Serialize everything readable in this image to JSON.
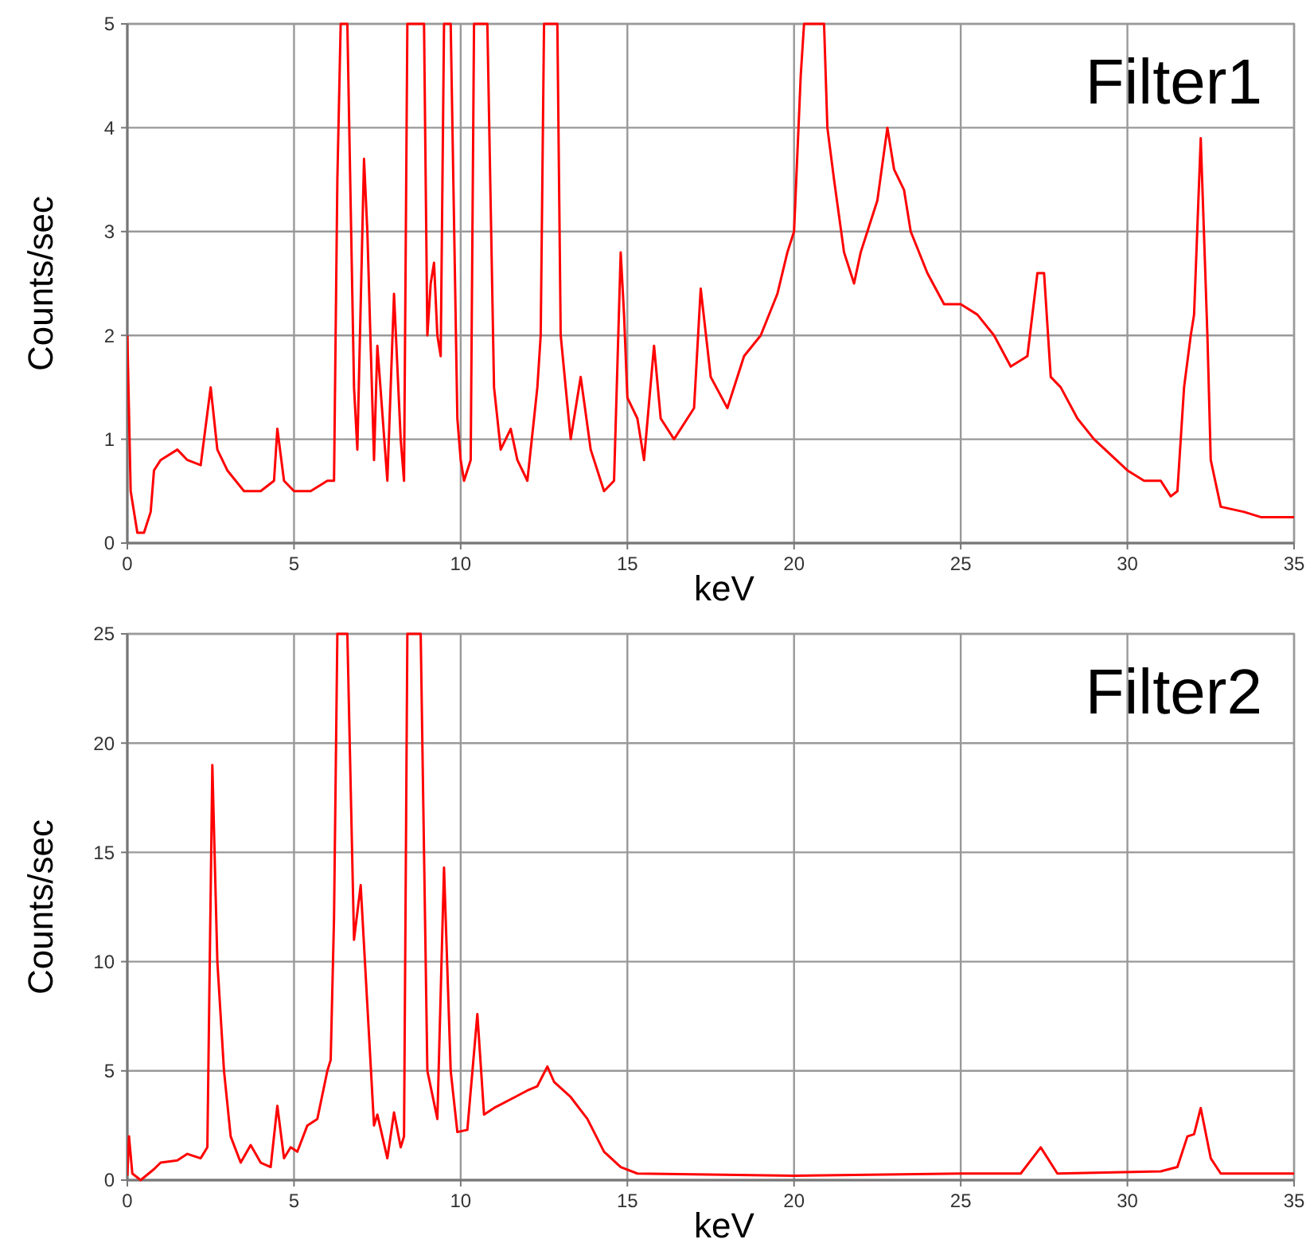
{
  "chart_data": [
    {
      "type": "line",
      "title": "Filter1",
      "xlabel": "keV",
      "ylabel": "Counts/sec",
      "xlim": [
        0,
        35
      ],
      "ylim": [
        0,
        5
      ],
      "xticks": [
        0,
        5,
        10,
        15,
        20,
        25,
        30,
        35
      ],
      "yticks": [
        0,
        1,
        2,
        3,
        4,
        5
      ],
      "grid": true,
      "series": [
        {
          "color": "#ff0000",
          "x": [
            0,
            0.1,
            0.3,
            0.5,
            0.7,
            0.8,
            1.0,
            1.5,
            1.8,
            2.2,
            2.5,
            2.7,
            3.0,
            3.5,
            4.0,
            4.4,
            4.5,
            4.7,
            5.0,
            5.5,
            6.0,
            6.2,
            6.3,
            6.4,
            6.6,
            6.8,
            6.9,
            7.1,
            7.2,
            7.4,
            7.5,
            7.8,
            8.0,
            8.2,
            8.3,
            8.4,
            8.6,
            8.9,
            9.0,
            9.1,
            9.2,
            9.3,
            9.4,
            9.5,
            9.7,
            9.9,
            10.0,
            10.1,
            10.3,
            10.4,
            10.8,
            11.0,
            11.2,
            11.5,
            11.7,
            12.0,
            12.3,
            12.4,
            12.5,
            12.9,
            13.0,
            13.3,
            13.6,
            13.9,
            14.3,
            14.6,
            14.8,
            14.9,
            15.0,
            15.3,
            15.5,
            15.8,
            16.0,
            16.4,
            17.0,
            17.2,
            17.5,
            18.0,
            18.5,
            19.0,
            19.5,
            19.8,
            20.0,
            20.2,
            20.3,
            20.9,
            21.0,
            21.2,
            21.5,
            21.8,
            22.0,
            22.3,
            22.5,
            22.8,
            23.0,
            23.3,
            23.5,
            24.0,
            24.5,
            25.0,
            25.5,
            26.0,
            26.5,
            27.0,
            27.3,
            27.5,
            27.7,
            28.0,
            28.5,
            29.0,
            29.5,
            30.0,
            30.5,
            31.0,
            31.3,
            31.5,
            31.7,
            31.9,
            32.0,
            32.2,
            32.4,
            32.5,
            32.8,
            33.5,
            34.0,
            35.0
          ],
          "values": [
            2.0,
            0.5,
            0.1,
            0.1,
            0.3,
            0.7,
            0.8,
            0.9,
            0.8,
            0.75,
            1.5,
            0.9,
            0.7,
            0.5,
            0.5,
            0.6,
            1.1,
            0.6,
            0.5,
            0.5,
            0.6,
            0.6,
            3.5,
            5,
            5,
            1.5,
            0.9,
            3.7,
            3.0,
            0.8,
            1.9,
            0.6,
            2.4,
            1.0,
            0.6,
            5,
            5,
            5,
            2.0,
            2.5,
            2.7,
            2.0,
            1.8,
            5,
            5,
            1.2,
            0.8,
            0.6,
            0.8,
            5,
            5,
            1.5,
            0.9,
            1.1,
            0.8,
            0.6,
            1.5,
            2.0,
            5,
            5,
            2.0,
            1.0,
            1.6,
            0.9,
            0.5,
            0.6,
            2.8,
            2.2,
            1.4,
            1.2,
            0.8,
            1.9,
            1.2,
            1.0,
            1.3,
            2.45,
            1.6,
            1.3,
            1.8,
            2.0,
            2.4,
            2.8,
            3.0,
            4.5,
            5,
            5,
            4.0,
            3.5,
            2.8,
            2.5,
            2.8,
            3.1,
            3.3,
            4.0,
            3.6,
            3.4,
            3.0,
            2.6,
            2.3,
            2.3,
            2.2,
            2.0,
            1.7,
            1.8,
            2.6,
            2.6,
            1.6,
            1.5,
            1.2,
            1.0,
            0.85,
            0.7,
            0.6,
            0.6,
            0.45,
            0.5,
            1.5,
            2.0,
            2.2,
            3.9,
            2.0,
            0.8,
            0.35,
            0.3,
            0.25,
            0.25
          ]
        }
      ]
    },
    {
      "type": "line",
      "title": "Filter2",
      "xlabel": "keV",
      "ylabel": "Counts/sec",
      "xlim": [
        0,
        35
      ],
      "ylim": [
        0,
        25
      ],
      "xticks": [
        0,
        5,
        10,
        15,
        20,
        25,
        30,
        35
      ],
      "yticks": [
        0,
        5,
        10,
        15,
        20,
        25
      ],
      "grid": true,
      "series": [
        {
          "color": "#ff0000",
          "x": [
            0,
            0.05,
            0.15,
            0.4,
            0.8,
            1.0,
            1.5,
            1.8,
            2.2,
            2.4,
            2.55,
            2.7,
            2.9,
            3.1,
            3.4,
            3.7,
            4.0,
            4.3,
            4.5,
            4.7,
            4.9,
            5.1,
            5.4,
            5.7,
            6.0,
            6.1,
            6.2,
            6.3,
            6.6,
            6.8,
            7.0,
            7.2,
            7.4,
            7.5,
            7.8,
            8.0,
            8.2,
            8.3,
            8.4,
            8.8,
            9.0,
            9.3,
            9.5,
            9.7,
            9.9,
            10.2,
            10.5,
            10.7,
            11.0,
            11.5,
            12.0,
            12.3,
            12.6,
            12.8,
            13.3,
            13.8,
            14.3,
            14.8,
            15.3,
            20.0,
            25.0,
            26.8,
            27.4,
            27.9,
            31.0,
            31.5,
            31.8,
            32.0,
            32.2,
            32.5,
            32.8,
            35.0
          ],
          "values": [
            0.2,
            2.0,
            0.3,
            0.0,
            0.5,
            0.8,
            0.9,
            1.2,
            1.0,
            1.5,
            19.0,
            10,
            5,
            2,
            0.8,
            1.6,
            0.8,
            0.6,
            3.4,
            1.0,
            1.5,
            1.3,
            2.5,
            2.8,
            5,
            5.5,
            12,
            25,
            25,
            11,
            13.5,
            8,
            2.5,
            3,
            1,
            3.1,
            1.5,
            2,
            25,
            25,
            5,
            2.8,
            14.3,
            5,
            2.2,
            2.3,
            7.6,
            3,
            3.3,
            3.7,
            4.1,
            4.3,
            5.2,
            4.5,
            3.8,
            2.8,
            1.3,
            0.6,
            0.3,
            0.2,
            0.3,
            0.3,
            1.5,
            0.3,
            0.4,
            0.6,
            2.0,
            2.1,
            3.3,
            1.0,
            0.3,
            0.3
          ]
        }
      ]
    }
  ]
}
